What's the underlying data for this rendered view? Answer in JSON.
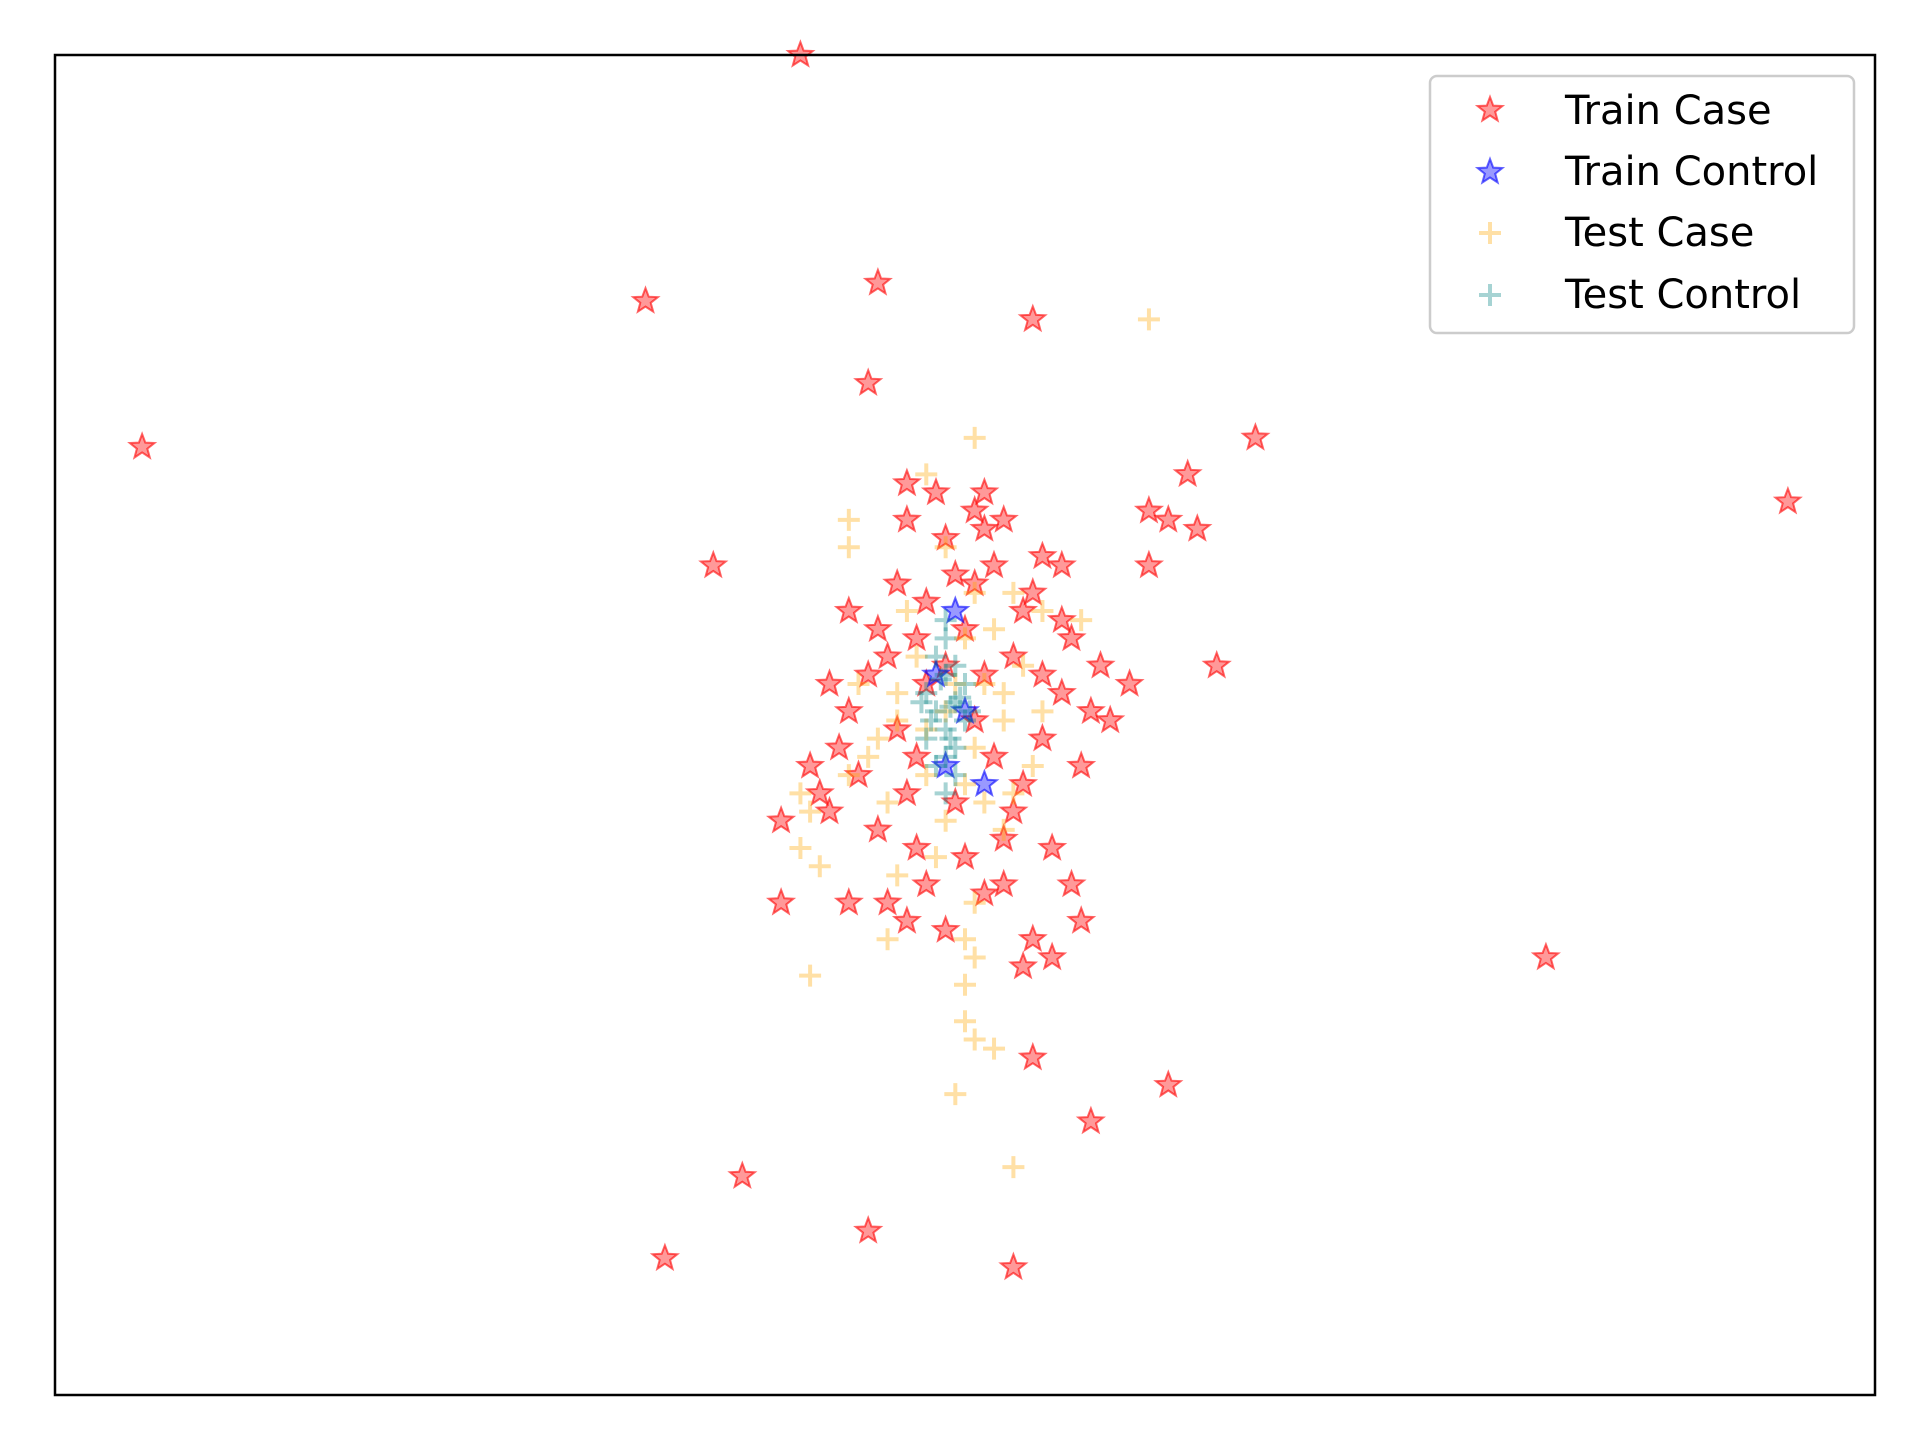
{
  "chart_data": {
    "type": "scatter",
    "title": "",
    "xlabel": "",
    "ylabel": "",
    "xlim": [
      -9.2,
      9.6
    ],
    "ylim": [
      -7.5,
      7.2
    ],
    "grid": false,
    "ticks": false,
    "legend_position": "top-right",
    "series": [
      {
        "name": "Train Case",
        "marker": "star",
        "color": "#ff0000",
        "points": [
          [
            -8.3,
            2.9
          ],
          [
            -1.5,
            7.2
          ],
          [
            -3.1,
            4.5
          ],
          [
            -0.7,
            4.7
          ],
          [
            0.9,
            4.3
          ],
          [
            -0.8,
            3.6
          ],
          [
            3.2,
            3.0
          ],
          [
            2.5,
            2.6
          ],
          [
            8.7,
            2.3
          ],
          [
            -2.4,
            1.6
          ],
          [
            2.1,
            2.2
          ],
          [
            2.3,
            2.1
          ],
          [
            2.6,
            2.0
          ],
          [
            1.2,
            1.6
          ],
          [
            2.1,
            1.6
          ],
          [
            2.8,
            0.5
          ],
          [
            1.9,
            0.3
          ],
          [
            1.7,
            -0.1
          ],
          [
            6.2,
            -2.7
          ],
          [
            -0.4,
            2.5
          ],
          [
            -0.1,
            2.4
          ],
          [
            0.3,
            2.2
          ],
          [
            -0.4,
            2.1
          ],
          [
            0.4,
            2.0
          ],
          [
            0.6,
            2.1
          ],
          [
            0.1,
            1.5
          ],
          [
            0.3,
            1.4
          ],
          [
            0.8,
            1.1
          ],
          [
            1.2,
            1.0
          ],
          [
            1.3,
            0.8
          ],
          [
            -0.7,
            0.9
          ],
          [
            -1.2,
            0.3
          ],
          [
            -1.4,
            -0.6
          ],
          [
            -1.7,
            -1.2
          ],
          [
            -1.7,
            -2.1
          ],
          [
            -1.0,
            -2.1
          ],
          [
            -0.4,
            -2.3
          ],
          [
            0.9,
            -2.5
          ],
          [
            0.8,
            -2.8
          ],
          [
            0.9,
            -3.8
          ],
          [
            1.5,
            -4.5
          ],
          [
            2.3,
            -4.1
          ],
          [
            -2.1,
            -5.1
          ],
          [
            -0.8,
            -5.7
          ],
          [
            -2.9,
            -6.0
          ],
          [
            0.7,
            -6.1
          ],
          [
            -1.3,
            -0.9
          ],
          [
            -1.2,
            -1.1
          ],
          [
            -1.0,
            0.0
          ],
          [
            -0.6,
            0.6
          ],
          [
            -0.3,
            0.8
          ],
          [
            0.0,
            0.5
          ],
          [
            0.4,
            0.4
          ],
          [
            0.7,
            0.6
          ],
          [
            1.0,
            0.4
          ],
          [
            1.2,
            0.2
          ],
          [
            1.0,
            -0.3
          ],
          [
            0.8,
            -0.8
          ],
          [
            0.6,
            -1.4
          ],
          [
            0.2,
            -1.6
          ],
          [
            -0.3,
            -1.5
          ],
          [
            -0.7,
            -1.3
          ],
          [
            -0.9,
            -0.7
          ],
          [
            -0.5,
            -0.2
          ],
          [
            0.3,
            -0.1
          ],
          [
            -0.2,
            0.3
          ],
          [
            0.5,
            -0.5
          ],
          [
            -0.4,
            -0.9
          ],
          [
            0.1,
            -1.0
          ],
          [
            1.4,
            -0.6
          ],
          [
            1.1,
            -1.5
          ],
          [
            1.3,
            -1.9
          ],
          [
            1.4,
            -2.3
          ],
          [
            1.1,
            -2.7
          ],
          [
            -0.6,
            -2.1
          ],
          [
            -0.2,
            -1.9
          ],
          [
            0.4,
            -2.0
          ],
          [
            0.0,
            -2.4
          ],
          [
            0.6,
            -1.9
          ],
          [
            1.5,
            0.0
          ],
          [
            0.9,
            1.3
          ],
          [
            0.4,
            2.4
          ],
          [
            0.0,
            1.9
          ],
          [
            -0.5,
            1.4
          ],
          [
            -1.0,
            1.1
          ],
          [
            1.6,
            0.5
          ],
          [
            -0.8,
            0.4
          ],
          [
            0.2,
            0.9
          ],
          [
            -0.3,
            -0.5
          ],
          [
            0.7,
            -1.1
          ],
          [
            -1.1,
            -0.4
          ],
          [
            1.0,
            1.7
          ],
          [
            -0.2,
            1.2
          ],
          [
            0.5,
            1.6
          ]
        ]
      },
      {
        "name": "Train Control",
        "marker": "star",
        "color": "#0000ff",
        "points": [
          [
            0.1,
            1.1
          ],
          [
            0.0,
            -0.6
          ],
          [
            0.4,
            -0.8
          ],
          [
            0.2,
            0.0
          ],
          [
            -0.1,
            0.4
          ]
        ]
      },
      {
        "name": "Test Case",
        "marker": "plus",
        "color": "#ffa500",
        "points": [
          [
            2.1,
            4.3
          ],
          [
            0.3,
            3.0
          ],
          [
            -0.2,
            2.6
          ],
          [
            -1.0,
            2.1
          ],
          [
            -1.0,
            1.8
          ],
          [
            0.0,
            1.8
          ],
          [
            0.7,
            1.3
          ],
          [
            1.0,
            1.1
          ],
          [
            1.4,
            1.0
          ],
          [
            -1.5,
            -0.9
          ],
          [
            -1.4,
            -1.1
          ],
          [
            -1.5,
            -1.5
          ],
          [
            -1.3,
            -1.7
          ],
          [
            -0.5,
            -1.8
          ],
          [
            0.3,
            -2.1
          ],
          [
            -0.6,
            -2.5
          ],
          [
            0.2,
            -2.5
          ],
          [
            0.3,
            -2.7
          ],
          [
            0.2,
            -3.0
          ],
          [
            0.2,
            -3.4
          ],
          [
            0.3,
            -3.6
          ],
          [
            0.5,
            -3.7
          ],
          [
            0.1,
            -4.2
          ],
          [
            0.7,
            -5.0
          ],
          [
            -1.4,
            -2.9
          ],
          [
            -0.8,
            -0.5
          ],
          [
            -0.5,
            -0.1
          ],
          [
            0.0,
            0.0
          ],
          [
            0.4,
            0.3
          ],
          [
            0.6,
            -0.1
          ],
          [
            -0.3,
            0.6
          ],
          [
            0.2,
            0.8
          ],
          [
            0.5,
            0.9
          ],
          [
            -0.6,
            -1.0
          ],
          [
            0.0,
            -1.2
          ],
          [
            0.6,
            -1.3
          ],
          [
            0.9,
            -0.6
          ],
          [
            -0.9,
            0.3
          ],
          [
            -0.2,
            -0.7
          ],
          [
            0.3,
            -0.4
          ],
          [
            0.8,
            0.5
          ],
          [
            -0.4,
            1.1
          ],
          [
            0.1,
            0.3
          ],
          [
            -0.7,
            -0.3
          ],
          [
            0.4,
            -1.0
          ],
          [
            -0.1,
            -1.6
          ],
          [
            0.7,
            -0.9
          ],
          [
            -1.0,
            -0.7
          ],
          [
            1.0,
            0.0
          ],
          [
            0.3,
            1.3
          ],
          [
            -0.2,
            -0.2
          ],
          [
            0.2,
            -0.8
          ],
          [
            -0.5,
            0.2
          ],
          [
            0.6,
            0.2
          ]
        ]
      },
      {
        "name": "Test Control",
        "marker": "plus",
        "color": "#008080",
        "points": [
          [
            0.0,
            0.4
          ],
          [
            0.1,
            0.1
          ],
          [
            0.0,
            -0.2
          ],
          [
            -0.1,
            0.0
          ],
          [
            0.1,
            -0.4
          ],
          [
            -0.2,
            0.2
          ],
          [
            0.2,
            0.3
          ],
          [
            0.0,
            -0.5
          ],
          [
            -0.1,
            0.6
          ],
          [
            0.1,
            0.5
          ],
          [
            -0.2,
            -0.3
          ],
          [
            0.2,
            -0.1
          ],
          [
            0.0,
            0.8
          ],
          [
            -0.1,
            -0.6
          ],
          [
            0.1,
            -0.7
          ],
          [
            0.05,
            0.05
          ],
          [
            -0.05,
            0.35
          ],
          [
            0.15,
            0.15
          ],
          [
            -0.15,
            -0.1
          ],
          [
            0.0,
            1.0
          ],
          [
            0.0,
            -0.9
          ],
          [
            -0.25,
            0.1
          ],
          [
            0.25,
            0.0
          ],
          [
            0.05,
            -0.3
          ]
        ]
      }
    ]
  }
}
